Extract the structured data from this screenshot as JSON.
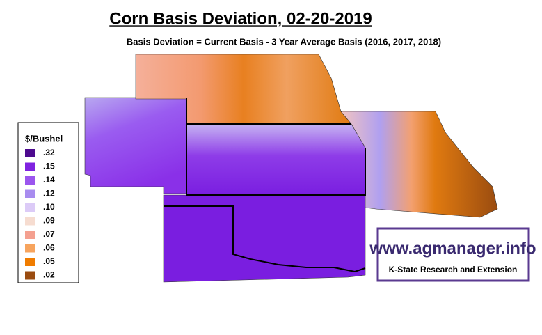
{
  "title": "Corn Basis Deviation, 02-20-2019",
  "subtitle": "Basis Deviation = Current Basis - 3 Year Average Basis (2016, 2017, 2018)",
  "legend": {
    "title": "$/Bushel",
    "items": [
      {
        "label": ".32",
        "color": "#4d0a8f"
      },
      {
        "label": ".15",
        "color": "#7f22e0"
      },
      {
        "label": ".14",
        "color": "#9b55ee"
      },
      {
        "label": ".12",
        "color": "#a88cef"
      },
      {
        "label": ".10",
        "color": "#dccbf7"
      },
      {
        "label": ".09",
        "color": "#f6dcd0"
      },
      {
        "label": ".07",
        "color": "#f4a090"
      },
      {
        "label": ".06",
        "color": "#f7a45e"
      },
      {
        "label": ".05",
        "color": "#f07c00"
      },
      {
        "label": ".02",
        "color": "#9a4c10"
      }
    ]
  },
  "logo": {
    "url": "www.agmanager.info",
    "org": "K-State Research and Extension"
  }
}
